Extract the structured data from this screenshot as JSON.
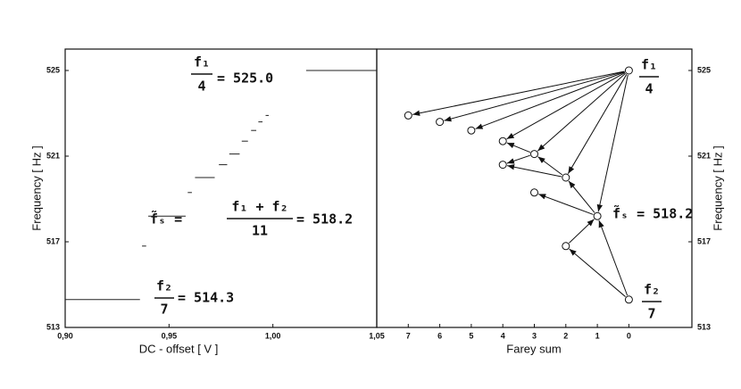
{
  "chart_data": [
    {
      "type": "step",
      "xlabel": "DC - offset  [ V ]",
      "ylabel": "Frequency  [ Hz ]",
      "xlim": [
        0.9,
        1.05
      ],
      "xticks": [
        {
          "value": 0.9,
          "label": "0,90"
        },
        {
          "value": 0.95,
          "label": "0,95"
        },
        {
          "value": 1.0,
          "label": "1,00"
        },
        {
          "value": 1.05,
          "label": "1,05"
        }
      ],
      "ylim": [
        513,
        526
      ],
      "yticks": [
        513,
        517,
        521,
        525
      ],
      "x0": [
        0.9,
        0.937,
        0.94,
        0.959,
        0.9625,
        0.974,
        0.979,
        0.985,
        0.9895,
        0.993,
        0.9965,
        1.016
      ],
      "x1": [
        0.936,
        0.939,
        0.958,
        0.961,
        0.972,
        0.978,
        0.984,
        0.988,
        0.992,
        0.995,
        0.998,
        1.05
      ],
      "values": [
        514.3,
        516.8,
        518.2,
        519.3,
        520.0,
        520.6,
        521.1,
        521.7,
        522.2,
        522.6,
        522.9,
        525.0
      ],
      "annotations": [
        {
          "num": "f₁",
          "den": "4",
          "text": "= 525.0"
        },
        {
          "lead": "f̃ₛ =",
          "num": "f₁ + f₂",
          "den": "11",
          "text": "= 518.2"
        },
        {
          "num": "f₂",
          "den": "7",
          "text": "= 514.3"
        }
      ]
    },
    {
      "type": "tree",
      "xlabel": "Farey sum",
      "ylabel": "Frequency  [ Hz ]",
      "xlim": [
        8,
        -2
      ],
      "xticks": [
        7,
        6,
        5,
        4,
        3,
        2,
        1,
        0
      ],
      "ylim": [
        513,
        526
      ],
      "yticks": [
        513,
        517,
        521,
        525
      ],
      "x": [
        0,
        0,
        1,
        2,
        2,
        3,
        3,
        4,
        4,
        5,
        6,
        7
      ],
      "values": [
        525.0,
        514.3,
        518.2,
        516.8,
        520.0,
        519.3,
        521.1,
        520.6,
        521.7,
        522.2,
        522.6,
        522.9
      ],
      "annotations": [
        {
          "num": "f₁",
          "den": "4"
        },
        {
          "text": "f̃ₛ = 518.2"
        },
        {
          "num": "f₂",
          "den": "7"
        }
      ]
    }
  ]
}
